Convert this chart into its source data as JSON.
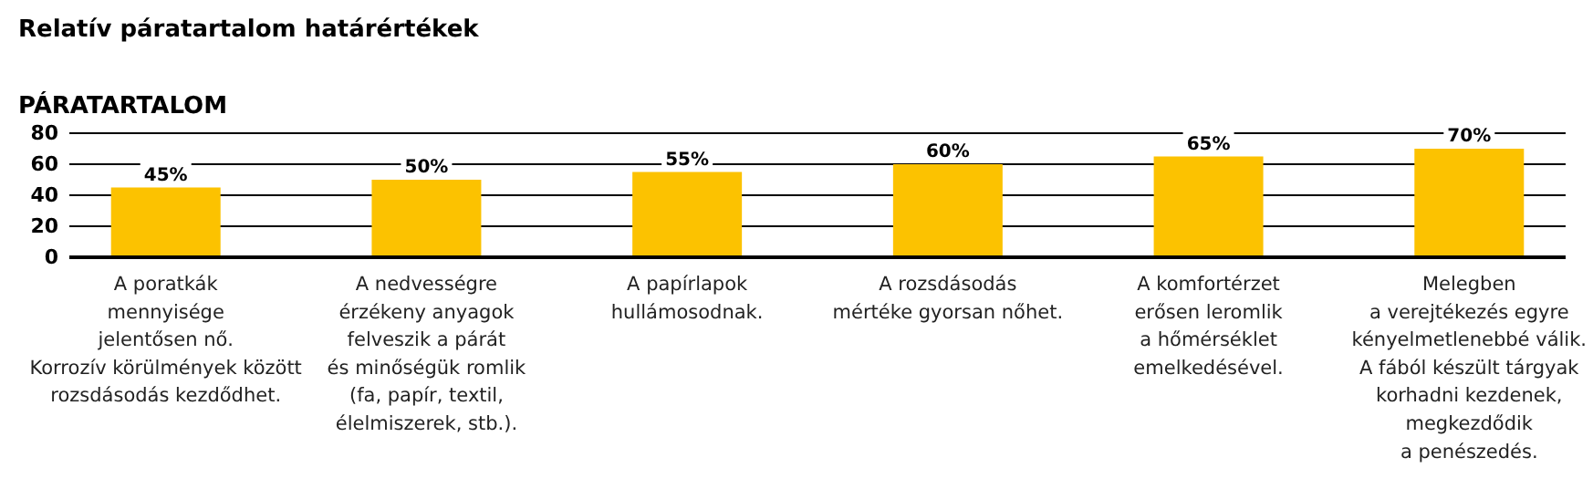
{
  "chart_data": {
    "type": "bar",
    "title": "Relatív páratartalom határértékek",
    "ylabel": "PÁRATARTALOM",
    "categories": [
      "A poratkák\nmennyisége\njelentősen nő.\nKorrozív körülmények között\nrozsdásodás kezdődhet.",
      "A nedvességre\nérzékeny anyagok\nfelveszik a párát\nés minőségük romlik\n(fa, papír, textil,\nélelmiszerek, stb.).",
      "A papírlapok\nhullámosodnak.",
      "A rozsdásodás\nmértéke gyorsan nőhet.",
      "A komfortérzet\nerősen leromlik\na hőmérséklet\nemelkedésével.",
      "Melegben\na verejtékezés egyre\nkényelmetlenebbé válik.\nA fából készült tárgyak\nkorhadni kezdenek,\nmegkezdődik\na penészedés."
    ],
    "values": [
      45,
      50,
      55,
      60,
      65,
      70
    ],
    "value_labels": [
      "45%",
      "50%",
      "55%",
      "60%",
      "65%",
      "70%"
    ],
    "color": "#fcc200",
    "ylim": [
      0,
      80
    ],
    "yticks": [
      0,
      20,
      40,
      60,
      80
    ],
    "grid": "y"
  }
}
